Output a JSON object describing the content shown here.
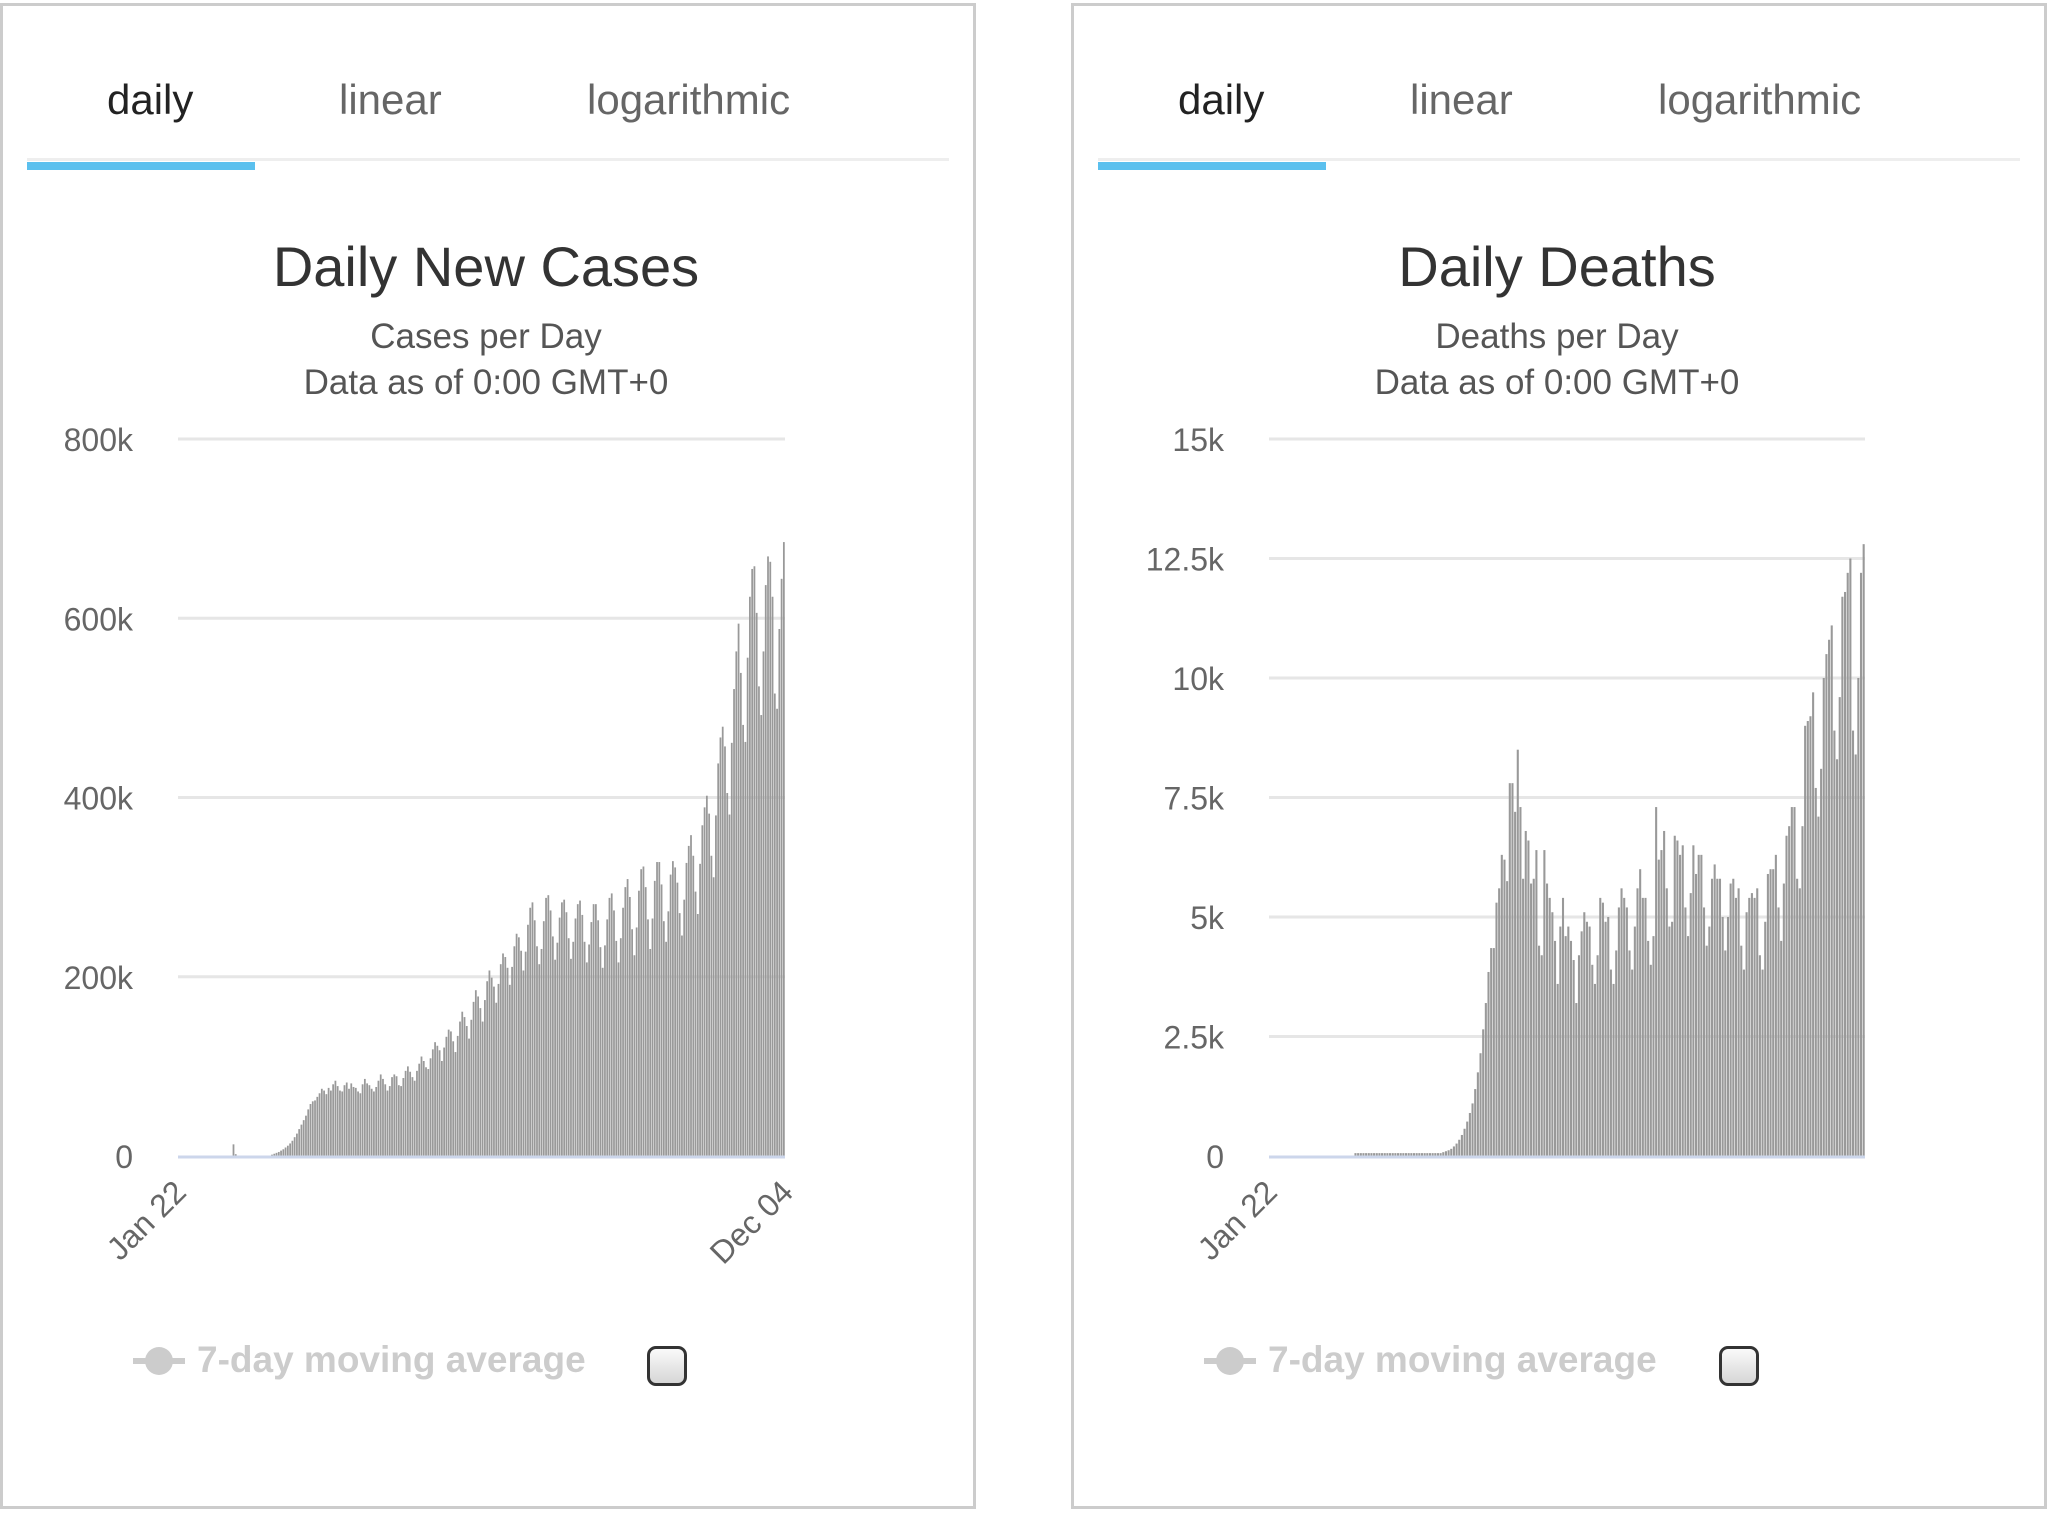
{
  "tabs": [
    "daily",
    "linear",
    "logarithmic"
  ],
  "active_tab": 0,
  "colors": {
    "bar": "#999999",
    "grid": "#e6e6e6",
    "tab_indicator": "#5bc0ee",
    "legend_disabled": "#cccccc",
    "axis_line": "#ccd6eb"
  },
  "icons": {
    "legend_marker": "line-with-circle-icon",
    "checkbox": "checkbox-icon"
  },
  "charts": [
    {
      "title": "Daily New Cases",
      "subtitle_1": "Cases per Day",
      "subtitle_2": "Data as of 0:00 GMT+0",
      "legend_label": "7-day moving average",
      "legend_checked": false
    },
    {
      "title": "Daily Deaths",
      "subtitle_1": "Deaths per Day",
      "subtitle_2": "Data as of 0:00 GMT+0",
      "legend_label": "7-day moving average",
      "legend_checked": false
    }
  ],
  "chart_data": [
    {
      "type": "bar",
      "title": "Daily New Cases",
      "subtitle": "Cases per Day",
      "x_start": "Jan 22",
      "x_end": "Dec 04",
      "x_tick_labels": [
        "Jan 22",
        "Dec 04"
      ],
      "y_tick_labels": [
        "0",
        "200k",
        "400k",
        "600k",
        "800k"
      ],
      "ylim": [
        0,
        800000
      ],
      "grid": true,
      "series": [
        {
          "name": "Daily Cases",
          "values": [
            0,
            0,
            0,
            0,
            0,
            0,
            0,
            0,
            0,
            0,
            0,
            0,
            0,
            0,
            0,
            0,
            0,
            0,
            0,
            0,
            0,
            0,
            0,
            0,
            13000,
            2000,
            500,
            500,
            500,
            500,
            500,
            500,
            500,
            500,
            500,
            500,
            500,
            500,
            500,
            500,
            500,
            1500,
            2500,
            3500,
            4500,
            6000,
            7500,
            9500,
            11500,
            14000,
            17000,
            21000,
            25000,
            30000,
            35000,
            40000,
            45000,
            52000,
            58000,
            61000,
            62000,
            66000,
            70000,
            75000,
            73000,
            69000,
            76000,
            73000,
            80000,
            84000,
            78000,
            73000,
            72000,
            79000,
            82000,
            75000,
            81000,
            77000,
            76000,
            72000,
            70000,
            80000,
            86000,
            81000,
            79000,
            75000,
            72000,
            77000,
            84000,
            91000,
            86000,
            80000,
            73000,
            78000,
            88000,
            91000,
            89000,
            79000,
            78000,
            87000,
            95000,
            100000,
            94000,
            88000,
            84000,
            95000,
            103000,
            111000,
            106000,
            99000,
            97000,
            109000,
            119000,
            127000,
            123000,
            118000,
            106000,
            121000,
            133000,
            141000,
            139000,
            128000,
            116000,
            134000,
            150000,
            161000,
            155000,
            145000,
            131000,
            152000,
            172000,
            185000,
            178000,
            165000,
            150000,
            174000,
            195000,
            207000,
            199000,
            189000,
            171000,
            192000,
            214000,
            226000,
            222000,
            210000,
            191000,
            211000,
            234000,
            248000,
            244000,
            229000,
            207000,
            228000,
            258000,
            277000,
            283000,
            263000,
            234000,
            214000,
            231000,
            262000,
            288000,
            291000,
            274000,
            245000,
            219000,
            238000,
            266000,
            283000,
            286000,
            272000,
            243000,
            220000,
            239000,
            265000,
            281000,
            285000,
            269000,
            239000,
            216000,
            236000,
            261000,
            281000,
            281000,
            263000,
            233000,
            210000,
            235000,
            264000,
            288000,
            293000,
            274000,
            240000,
            216000,
            243000,
            277000,
            300000,
            309000,
            289000,
            253000,
            224000,
            255000,
            296000,
            320000,
            323000,
            300000,
            264000,
            231000,
            265000,
            307000,
            328000,
            328000,
            303000,
            262000,
            239000,
            273000,
            314000,
            329000,
            322000,
            305000,
            271000,
            246000,
            286000,
            327000,
            346000,
            358000,
            335000,
            295000,
            270000,
            326000,
            369000,
            389000,
            402000,
            382000,
            335000,
            311000,
            380000,
            438000,
            467000,
            479000,
            457000,
            405000,
            381000,
            461000,
            521000,
            563000,
            594000,
            539000,
            481000,
            462000,
            556000,
            624000,
            655000,
            658000,
            606000,
            524000,
            492000,
            563000,
            637000,
            669000,
            663000,
            624000,
            516000,
            499000,
            588000,
            644000,
            685000
          ]
        }
      ]
    },
    {
      "type": "bar",
      "title": "Daily Deaths",
      "subtitle": "Deaths per Day",
      "x_start": "Jan 22",
      "x_tick_labels": [
        "Jan 22"
      ],
      "y_tick_labels": [
        "0",
        "2.5k",
        "5k",
        "7.5k",
        "10k",
        "12.5k",
        "15k"
      ],
      "ylim": [
        0,
        15000
      ],
      "grid": true,
      "series": [
        {
          "name": "Daily Deaths",
          "values": [
            0,
            0,
            0,
            0,
            0,
            0,
            0,
            0,
            0,
            0,
            0,
            0,
            0,
            0,
            0,
            0,
            0,
            0,
            0,
            0,
            0,
            0,
            0,
            0,
            0,
            0,
            0,
            0,
            0,
            0,
            0,
            0,
            60,
            60,
            60,
            60,
            60,
            60,
            60,
            60,
            60,
            60,
            60,
            60,
            60,
            60,
            60,
            60,
            60,
            60,
            60,
            60,
            60,
            60,
            60,
            60,
            60,
            60,
            60,
            60,
            60,
            60,
            60,
            60,
            60,
            80,
            100,
            120,
            150,
            200,
            260,
            340,
            440,
            570,
            720,
            900,
            1100,
            1400,
            1750,
            2150,
            2650,
            3200,
            3850,
            4350,
            4350,
            5300,
            5600,
            6300,
            6200,
            5750,
            7800,
            7800,
            7200,
            8500,
            7300,
            5800,
            6800,
            6600,
            5700,
            5800,
            6400,
            4400,
            4200,
            6400,
            5700,
            5400,
            5100,
            4500,
            3600,
            4800,
            5400,
            4600,
            4800,
            4500,
            4100,
            3200,
            4200,
            4700,
            5100,
            4900,
            4800,
            4000,
            3600,
            4200,
            5400,
            5300,
            4900,
            5000,
            3900,
            3600,
            4300,
            5200,
            5600,
            5400,
            5200,
            4300,
            3900,
            4800,
            5600,
            6000,
            5400,
            5400,
            4500,
            4000,
            4600,
            7300,
            6200,
            6400,
            6800,
            5600,
            4800,
            4900,
            6700,
            6600,
            6300,
            6500,
            5200,
            4600,
            5500,
            6500,
            5900,
            6300,
            6300,
            5200,
            4400,
            4800,
            5800,
            6100,
            5800,
            5800,
            5000,
            4300,
            5000,
            5700,
            5800,
            5400,
            5600,
            4400,
            3900,
            5100,
            5400,
            5500,
            5400,
            5600,
            4200,
            3900,
            4900,
            5900,
            6000,
            6000,
            6300,
            5200,
            4500,
            5700,
            6700,
            6900,
            7300,
            7300,
            5800,
            5600,
            6900,
            9000,
            9100,
            9200,
            9700,
            7700,
            7100,
            8100,
            10000,
            10500,
            10800,
            11100,
            8900,
            8300,
            9600,
            11700,
            11800,
            12200,
            12500,
            8900,
            8400,
            10000,
            12200,
            12800
          ]
        }
      ]
    }
  ]
}
